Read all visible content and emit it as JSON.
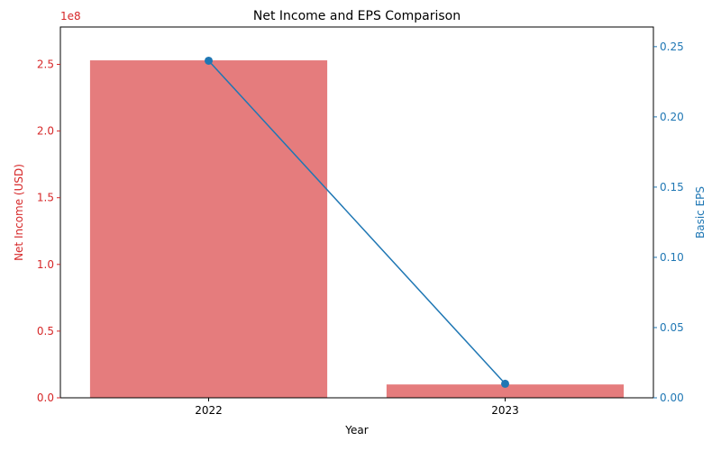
{
  "chart_data": {
    "type": "bar+line",
    "title": "Net Income and EPS Comparison",
    "xlabel": "Year",
    "categories": [
      "2022",
      "2023"
    ],
    "left_axis": {
      "label": "Net Income (USD)",
      "offset_text": "1e8",
      "scale": 100000000,
      "ylim": [
        0,
        2.78
      ],
      "ticks": [
        0.0,
        0.5,
        1.0,
        1.5,
        2.0,
        2.5
      ],
      "tick_labels": [
        "0.0",
        "0.5",
        "1.0",
        "1.5",
        "2.0",
        "2.5"
      ],
      "color": "#d62728"
    },
    "right_axis": {
      "label": "Basic EPS",
      "ylim": [
        0,
        0.264
      ],
      "ticks": [
        0.0,
        0.05,
        0.1,
        0.15,
        0.2,
        0.25
      ],
      "tick_labels": [
        "0.00",
        "0.05",
        "0.10",
        "0.15",
        "0.20",
        "0.25"
      ],
      "color": "#1f77b4"
    },
    "series": [
      {
        "type": "bar",
        "axis": "left",
        "color": "#e57c7d",
        "values": [
          2.53,
          0.1
        ]
      },
      {
        "type": "line",
        "axis": "right",
        "color": "#1f77b4",
        "values": [
          0.24,
          0.01
        ]
      }
    ],
    "grid": false
  }
}
